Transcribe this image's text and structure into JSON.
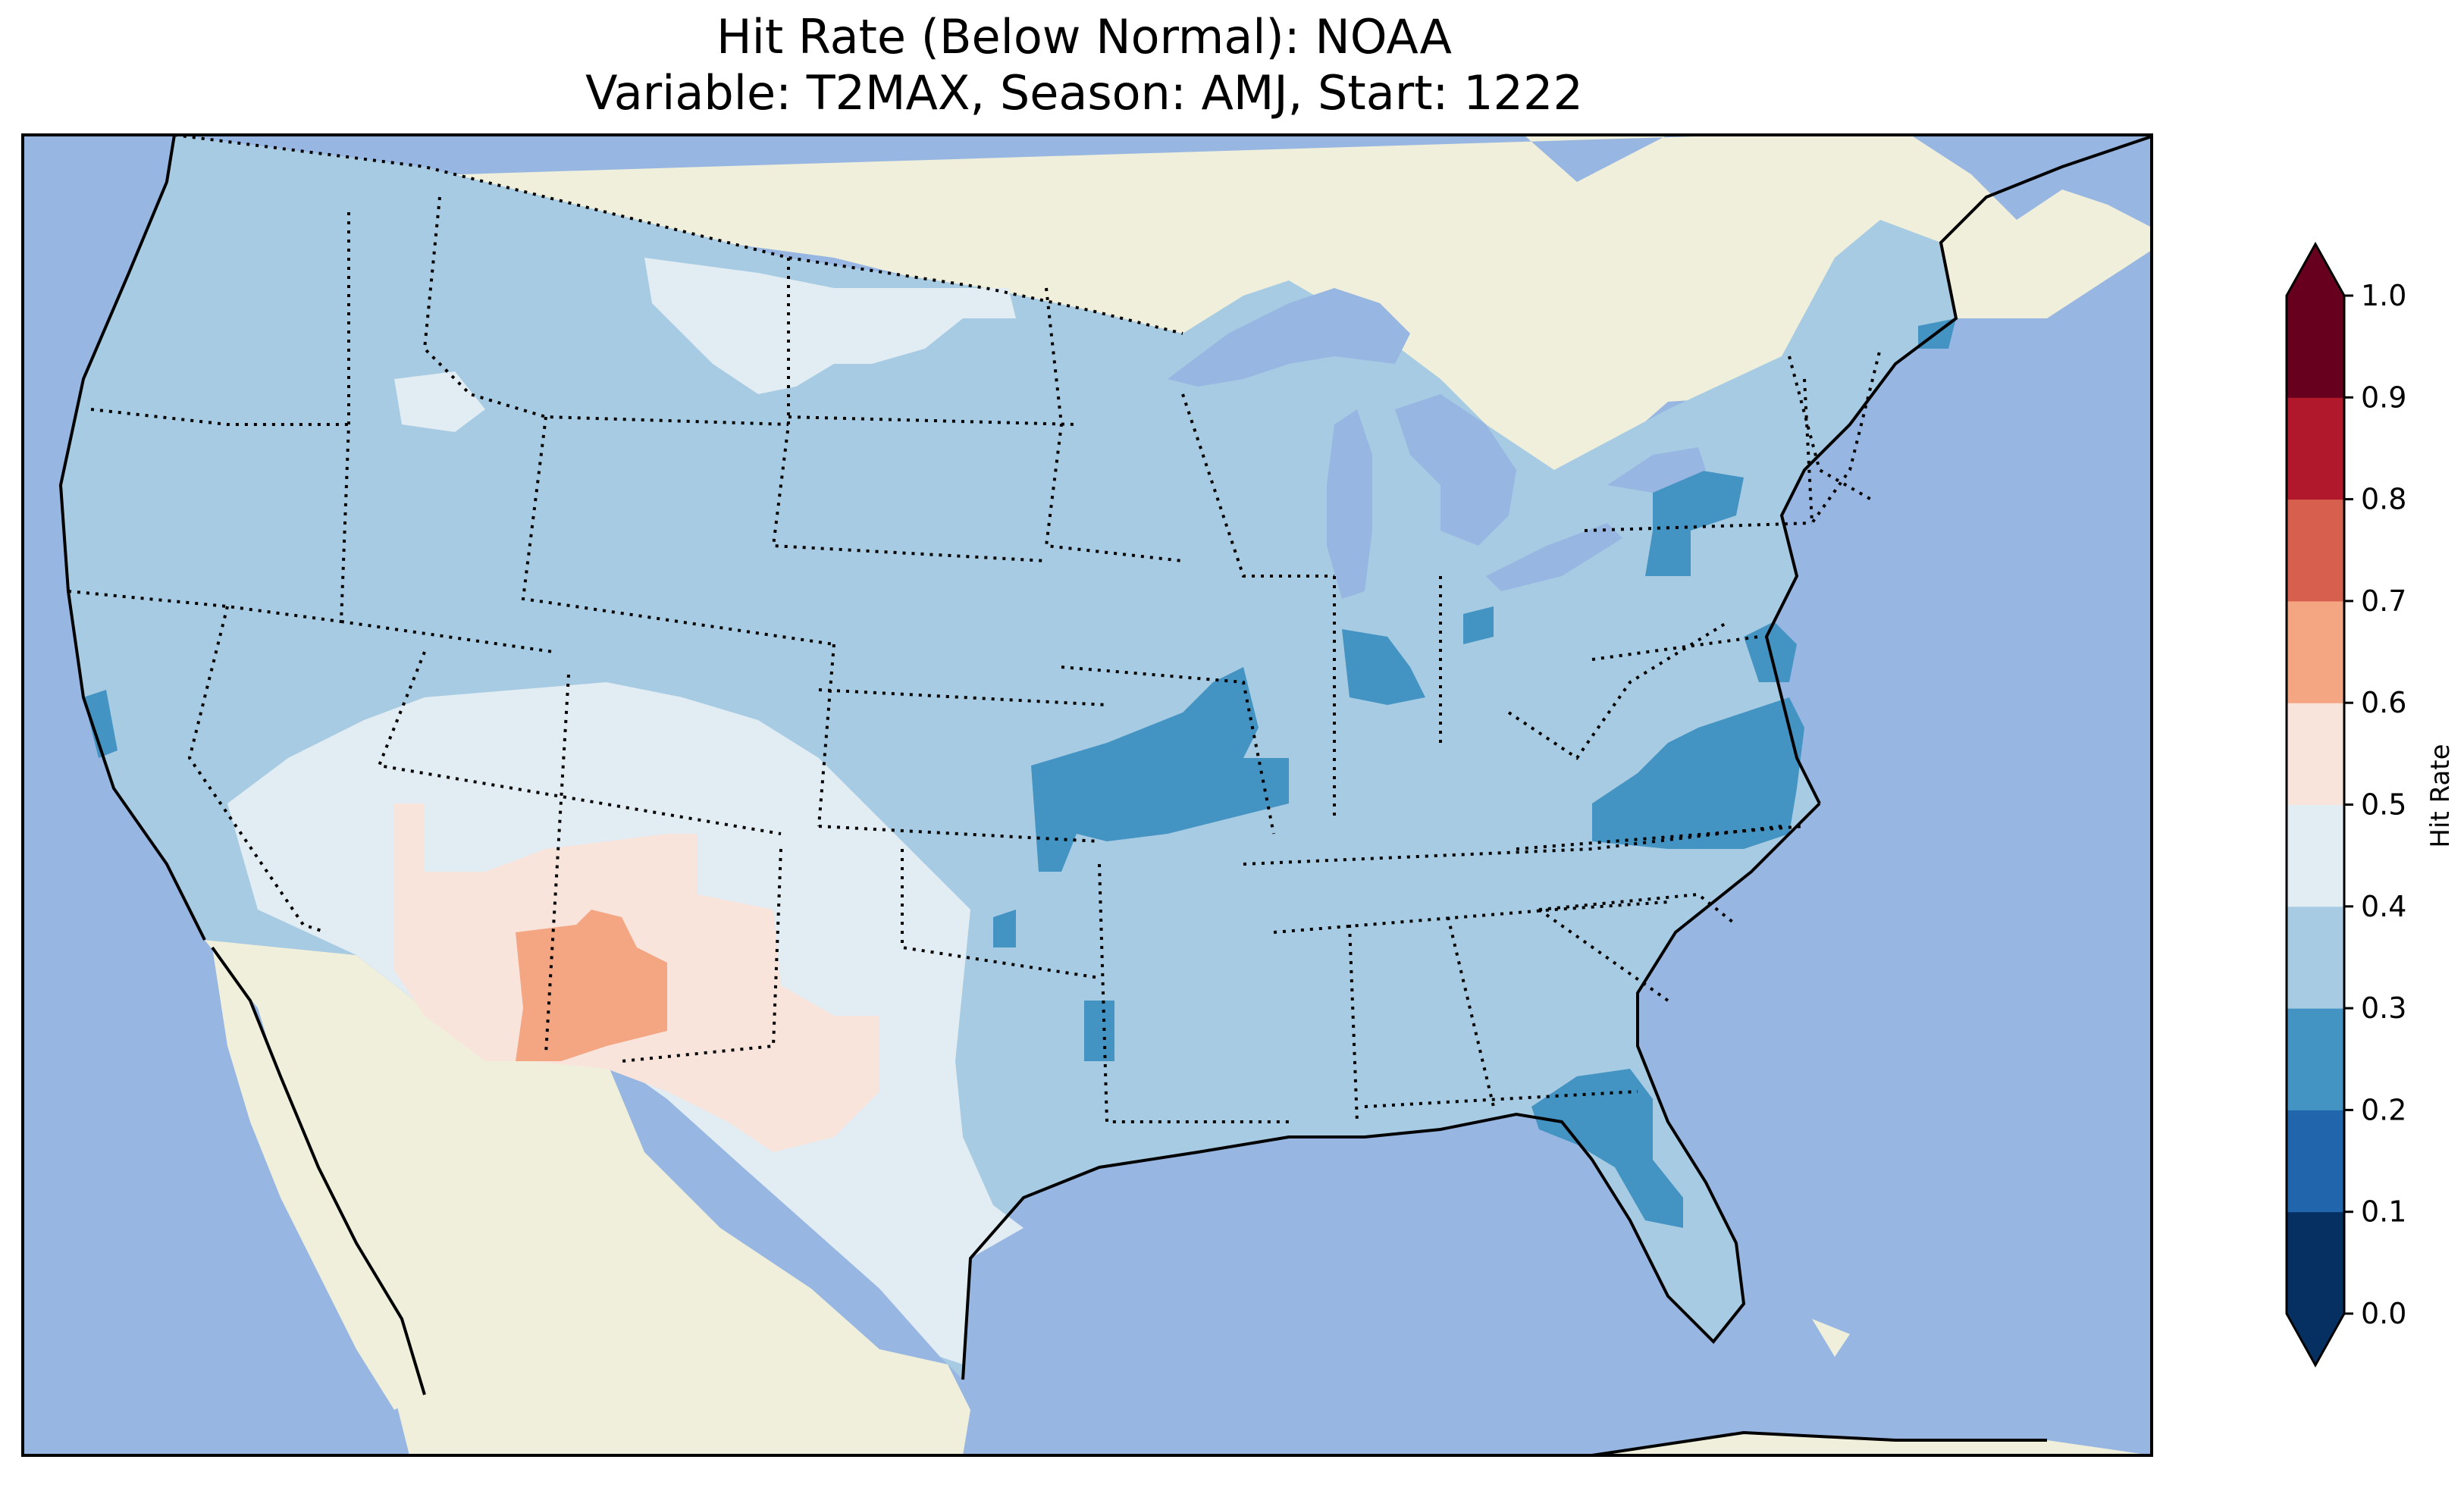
{
  "title": {
    "line1": "Hit Rate (Below Normal): NOAA",
    "line2": "Variable: T2MAX, Season: AMJ, Start: 1222"
  },
  "colors": {
    "ocean": "#97b6e1",
    "land": "#efefdb",
    "lake": "#97b6e1"
  },
  "colorbar": {
    "label": "Hit Rate",
    "ticks": [
      "0.0",
      "0.1",
      "0.2",
      "0.3",
      "0.4",
      "0.5",
      "0.6",
      "0.7",
      "0.8",
      "0.9",
      "1.0"
    ],
    "bins": [
      {
        "range": [
          0.0,
          0.1
        ],
        "color": "#053061"
      },
      {
        "range": [
          0.1,
          0.2
        ],
        "color": "#2166ac"
      },
      {
        "range": [
          0.2,
          0.3
        ],
        "color": "#4393c3"
      },
      {
        "range": [
          0.3,
          0.4
        ],
        "color": "#a6cbe2"
      },
      {
        "range": [
          0.4,
          0.5
        ],
        "color": "#e1ecf3"
      },
      {
        "range": [
          0.5,
          0.6
        ],
        "color": "#f9e4dc"
      },
      {
        "range": [
          0.6,
          0.7
        ],
        "color": "#f4a582"
      },
      {
        "range": [
          0.7,
          0.8
        ],
        "color": "#d6604d"
      },
      {
        "range": [
          0.8,
          0.9
        ],
        "color": "#b2182b"
      },
      {
        "range": [
          0.9,
          1.0
        ],
        "color": "#67001f"
      }
    ],
    "extend": "both"
  },
  "map_regions": [
    {
      "name": "southwest-high-hit-rate",
      "value_bin": "0.6-0.7"
    },
    {
      "name": "southwest-moderate",
      "value_bin": "0.5-0.6"
    },
    {
      "name": "west-and-texas",
      "value_bin": "0.4-0.5"
    },
    {
      "name": "most-of-conus",
      "value_bin": "0.3-0.4"
    },
    {
      "name": "low-patches-missouri-virginia-florida",
      "value_bin": "0.2-0.3"
    }
  ]
}
